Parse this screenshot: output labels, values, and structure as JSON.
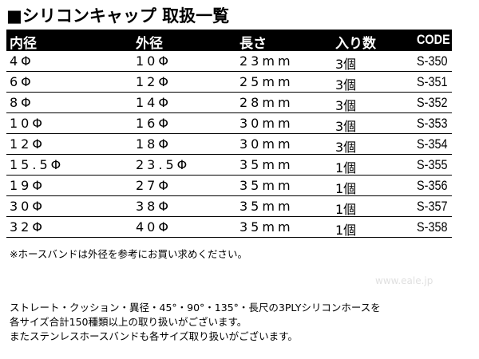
{
  "title": "■シリコンキャップ 取扱一覧",
  "table": {
    "headers": [
      "内径",
      "外径",
      "長さ",
      "入り数",
      "CODE"
    ],
    "rows": [
      [
        "4Φ",
        "10Φ",
        "23mm",
        "3個",
        "S-350"
      ],
      [
        "6Φ",
        "12Φ",
        "25mm",
        "3個",
        "S-351"
      ],
      [
        "8Φ",
        "14Φ",
        "28mm",
        "3個",
        "S-352"
      ],
      [
        "10Φ",
        "16Φ",
        "30mm",
        "3個",
        "S-353"
      ],
      [
        "12Φ",
        "18Φ",
        "30mm",
        "3個",
        "S-354"
      ],
      [
        "15.5Φ",
        "23.5Φ",
        "35mm",
        "1個",
        "S-355"
      ],
      [
        "19Φ",
        "27Φ",
        "35mm",
        "1個",
        "S-356"
      ],
      [
        "30Φ",
        "38Φ",
        "35mm",
        "1個",
        "S-357"
      ],
      [
        "32Φ",
        "40Φ",
        "35mm",
        "1個",
        "S-358"
      ]
    ]
  },
  "note": "※ホースバンドは外径を参考にお買い求めください。",
  "description": [
    "ストレート・クッション・異径・45°・90°・135°・長尺の3PLYシリコンホースを",
    "各サイズ合計150種類以上の取り扱いがございます。",
    "またステンレスホースバンドも各サイズ取り扱いがございます。"
  ],
  "watermark": "www.eale.jp"
}
